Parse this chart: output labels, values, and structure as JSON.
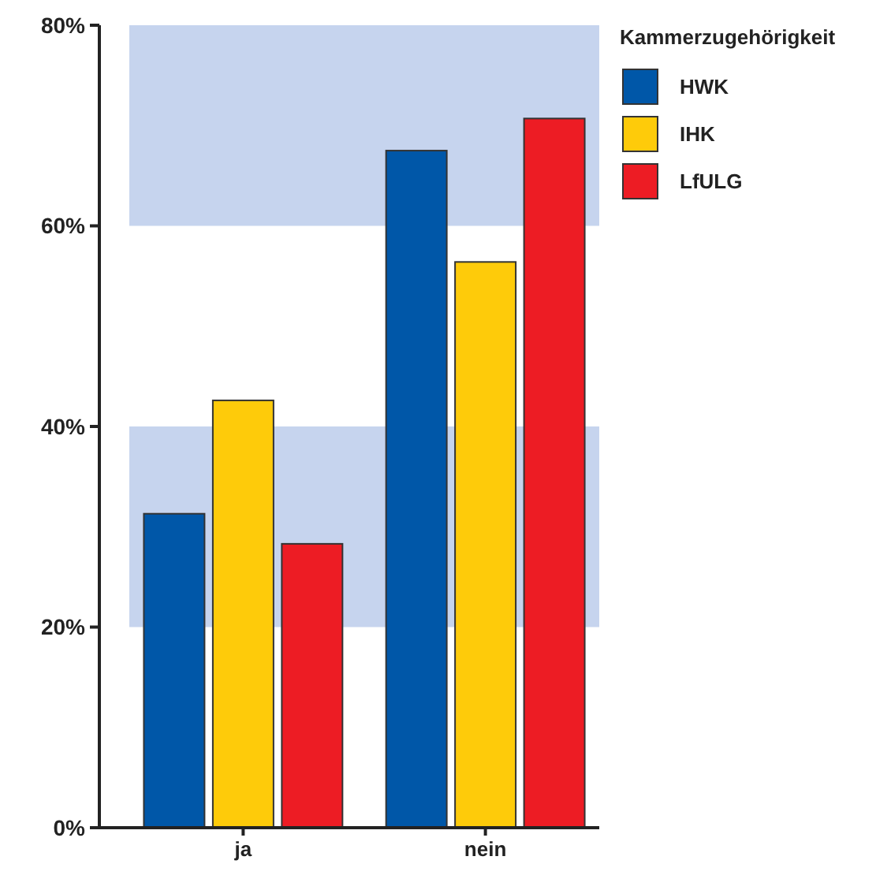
{
  "chart_data": {
    "type": "bar",
    "categories": [
      "ja",
      "nein"
    ],
    "series": [
      {
        "name": "HWK",
        "color": "#0057a8",
        "values": [
          31.3,
          67.5
        ]
      },
      {
        "name": "IHK",
        "color": "#fecb0a",
        "values": [
          42.6,
          56.4
        ]
      },
      {
        "name": "LfULG",
        "color": "#ed1c24",
        "values": [
          28.3,
          70.7
        ]
      }
    ],
    "ylim": [
      0,
      80
    ],
    "yticks": [
      {
        "value": 0,
        "label": "0%"
      },
      {
        "value": 20,
        "label": "20%"
      },
      {
        "value": 40,
        "label": "40%"
      },
      {
        "value": 60,
        "label": "60%"
      },
      {
        "value": 80,
        "label": "80%"
      }
    ],
    "bands": [
      {
        "axis": "y",
        "from": 20,
        "to": 40,
        "color": "#c6d4ee"
      },
      {
        "axis": "y",
        "from": 60,
        "to": 80,
        "color": "#c6d4ee"
      }
    ],
    "legend_title": "Kammerzugehörigkeit",
    "legend": "top right",
    "grid": false
  }
}
